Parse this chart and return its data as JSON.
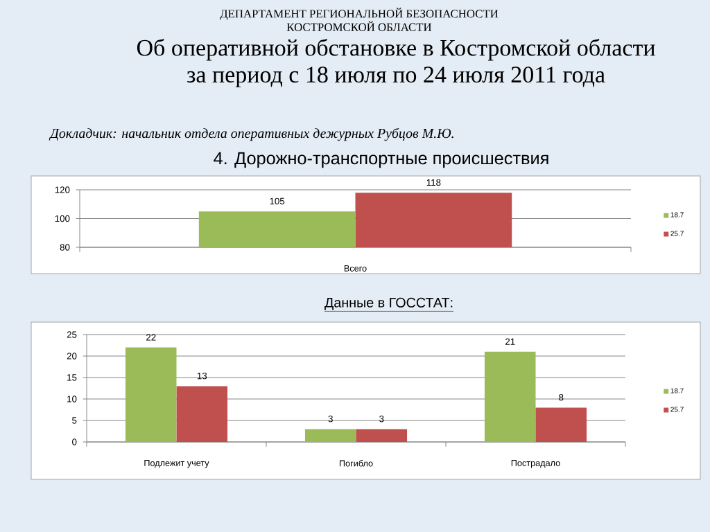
{
  "chart_data": [
    {
      "type": "bar",
      "title": "4. Дорожно-транспортные происшествия",
      "annotations": [
        "ДЕПАРТАМЕНТ РЕГИОНАЛЬНОЙ БЕЗОПАСНОСТИ КОСТРОМСКОЙ ОБЛАСТИ",
        "Об оперативной обстановке в Костромской области за период с 18 июля по 24 июля 2011 года",
        "Докладчик: начальник отдела оперативных дежурных Рубцов М.Ю."
      ],
      "categories": [
        "Всего"
      ],
      "series": [
        {
          "name": "18.7",
          "color": "#9bbb59",
          "values": [
            105
          ]
        },
        {
          "name": "25.7",
          "color": "#c0504d",
          "values": [
            118
          ]
        }
      ],
      "ylim": [
        80,
        120
      ],
      "yticks": [
        80,
        100,
        120
      ],
      "grid": "y",
      "legend": "right",
      "data_labels": true
    },
    {
      "type": "bar",
      "title": "Данные в ГОССТАТ:",
      "categories": [
        "Подлежит учету",
        "Погибло",
        "Пострадало"
      ],
      "series": [
        {
          "name": "18.7",
          "color": "#9bbb59",
          "values": [
            22,
            3,
            21
          ]
        },
        {
          "name": "25.7",
          "color": "#c0504d",
          "values": [
            13,
            3,
            8
          ]
        }
      ],
      "ylim": [
        0,
        25
      ],
      "yticks": [
        0,
        5,
        10,
        15,
        20,
        25
      ],
      "grid": "y",
      "legend": "right",
      "data_labels": true
    }
  ]
}
